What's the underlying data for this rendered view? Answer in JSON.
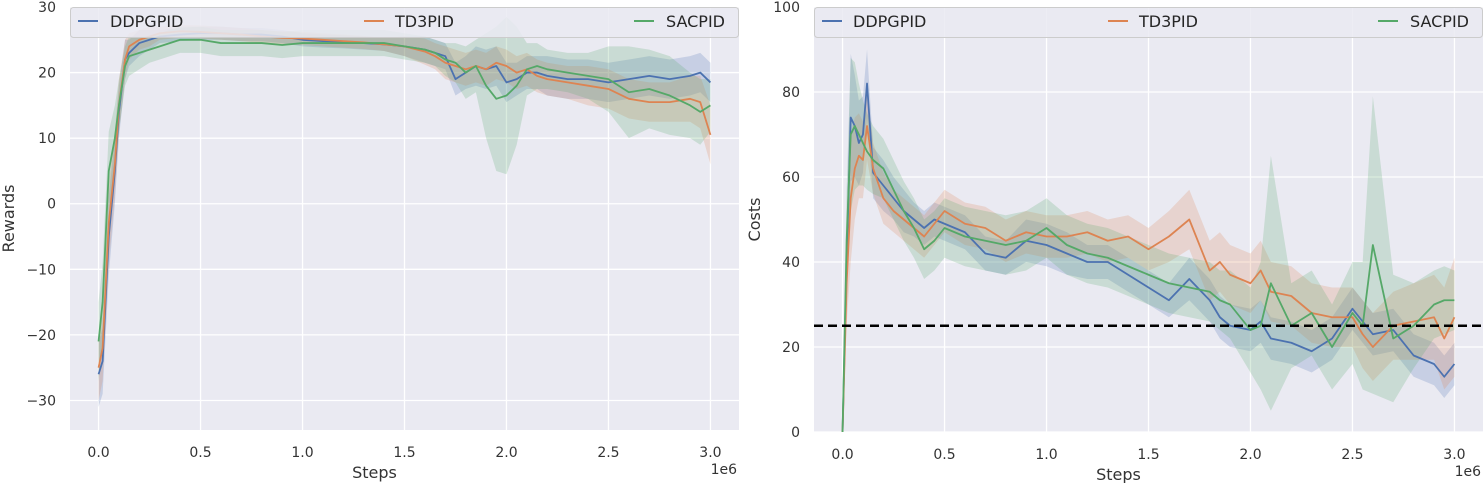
{
  "chart_data": [
    {
      "type": "line",
      "title": "",
      "xlabel": "Steps",
      "ylabel": "Rewards",
      "x_offset_label": "1e6",
      "xlim": [
        -0.14,
        3.14
      ],
      "ylim": [
        -34.5,
        30
      ],
      "xticks": [
        0.0,
        0.5,
        1.0,
        1.5,
        2.0,
        2.5,
        3.0
      ],
      "xtick_labels": [
        "0.0",
        "0.5",
        "1.0",
        "1.5",
        "2.0",
        "2.5",
        "3.0"
      ],
      "yticks": [
        -30,
        -20,
        -10,
        0,
        10,
        20,
        30
      ],
      "ytick_labels": [
        "−30",
        "−20",
        "−10",
        "0",
        "10",
        "20",
        "30"
      ],
      "grid": true,
      "legend": "top",
      "x": [
        0.0,
        0.02,
        0.05,
        0.08,
        0.1,
        0.13,
        0.15,
        0.2,
        0.25,
        0.3,
        0.4,
        0.5,
        0.6,
        0.7,
        0.8,
        0.9,
        1.0,
        1.1,
        1.2,
        1.3,
        1.4,
        1.5,
        1.6,
        1.65,
        1.7,
        1.75,
        1.8,
        1.85,
        1.9,
        1.95,
        2.0,
        2.05,
        2.1,
        2.15,
        2.2,
        2.3,
        2.4,
        2.5,
        2.6,
        2.7,
        2.8,
        2.9,
        2.95,
        3.0
      ],
      "series": [
        {
          "name": "DDPGPID",
          "color": "#4c72b0",
          "values": [
            -26,
            -24,
            -5,
            5,
            14,
            22,
            23,
            24.5,
            25,
            25.5,
            25.8,
            26,
            26,
            25.8,
            25.8,
            25.5,
            25,
            24.8,
            24.7,
            24.5,
            24.3,
            24,
            23.5,
            23,
            22.5,
            19,
            20,
            21,
            20.5,
            21,
            18.5,
            19,
            20,
            20,
            19.5,
            19,
            19,
            18.5,
            19,
            19.5,
            19,
            19.5,
            20,
            18.5
          ],
          "band": [
            5,
            5,
            6,
            5,
            4,
            3,
            2,
            2,
            1.5,
            1,
            1,
            1,
            1,
            1,
            1,
            1,
            1,
            1,
            1,
            1,
            1,
            1.5,
            2,
            2,
            2,
            2.5,
            2.5,
            3,
            3,
            3,
            3,
            2.5,
            2.5,
            2.5,
            3,
            3,
            3,
            3,
            3,
            3,
            3,
            3,
            3,
            3
          ]
        },
        {
          "name": "TD3PID",
          "color": "#dd8452",
          "values": [
            -25,
            -22,
            -3,
            6,
            15,
            22,
            24,
            25,
            25.5,
            26,
            26.3,
            26.2,
            26,
            25.8,
            25.5,
            25.3,
            25.2,
            25,
            24.8,
            24.6,
            24.3,
            24,
            23.2,
            22.5,
            21.5,
            21,
            20.5,
            21,
            20.5,
            21.5,
            21,
            20,
            20.5,
            19.5,
            19,
            18.5,
            18,
            17.5,
            16,
            15.5,
            15.5,
            16,
            15.5,
            10.5
          ],
          "band": [
            5,
            5,
            6,
            5,
            4,
            3,
            2,
            1.5,
            1.5,
            1,
            1,
            1,
            1,
            1,
            1,
            1,
            1,
            1,
            1,
            1,
            1,
            1.5,
            2,
            2,
            2.5,
            2.5,
            2.5,
            2.5,
            2.5,
            2.5,
            2.5,
            2.5,
            2.5,
            2.5,
            2.5,
            2.5,
            3,
            3,
            3,
            3,
            3,
            3.5,
            4,
            4.5
          ]
        },
        {
          "name": "SACPID",
          "color": "#55a868",
          "values": [
            -21,
            -15,
            5,
            10,
            15,
            21,
            22.5,
            23,
            23.5,
            24,
            25,
            25,
            24.5,
            24.5,
            24.5,
            24.2,
            24.5,
            24.5,
            24.5,
            24.5,
            24.5,
            24,
            23.5,
            23,
            22,
            21.5,
            20,
            21,
            18,
            16,
            16.5,
            18,
            20.5,
            21,
            20.5,
            20,
            19.5,
            19,
            17,
            17.5,
            16.5,
            15,
            14,
            15
          ],
          "band": [
            6,
            6,
            6,
            5,
            4,
            3,
            3,
            2.5,
            2,
            2,
            2,
            2,
            2,
            2,
            2,
            2,
            2,
            2,
            2,
            2,
            2,
            2,
            2,
            2,
            2.5,
            3,
            4,
            4,
            8,
            11,
            12,
            9,
            4,
            3.5,
            3,
            3,
            3.5,
            5,
            7,
            6,
            6,
            5,
            5,
            4
          ]
        }
      ]
    },
    {
      "type": "line",
      "title": "",
      "xlabel": "Steps",
      "ylabel": "Costs",
      "x_offset_label": "1e6",
      "xlim": [
        -0.14,
        3.14
      ],
      "ylim": [
        0,
        100
      ],
      "xticks": [
        0.0,
        0.5,
        1.0,
        1.5,
        2.0,
        2.5,
        3.0
      ],
      "xtick_labels": [
        "0.0",
        "0.5",
        "1.0",
        "1.5",
        "2.0",
        "2.5",
        "3.0"
      ],
      "yticks": [
        0,
        20,
        40,
        60,
        80,
        100
      ],
      "ytick_labels": [
        "0",
        "20",
        "40",
        "60",
        "80",
        "100"
      ],
      "grid": true,
      "legend": "top",
      "threshold": 25,
      "x": [
        0.0,
        0.02,
        0.04,
        0.06,
        0.08,
        0.1,
        0.12,
        0.15,
        0.2,
        0.25,
        0.3,
        0.35,
        0.4,
        0.45,
        0.5,
        0.6,
        0.7,
        0.8,
        0.9,
        1.0,
        1.1,
        1.2,
        1.3,
        1.4,
        1.5,
        1.6,
        1.7,
        1.8,
        1.85,
        1.9,
        2.0,
        2.05,
        2.1,
        2.2,
        2.3,
        2.4,
        2.5,
        2.55,
        2.6,
        2.7,
        2.8,
        2.9,
        2.95,
        3.0
      ],
      "series": [
        {
          "name": "DDPGPID",
          "color": "#4c72b0",
          "values": [
            0,
            40,
            74,
            72,
            68,
            70,
            82,
            61,
            58,
            55,
            52,
            50,
            48,
            50,
            49,
            47,
            42,
            41,
            45,
            44,
            42,
            40,
            40,
            37,
            34,
            31,
            36,
            31,
            27,
            25,
            24,
            26,
            22,
            21,
            19,
            22,
            29,
            26,
            23,
            24,
            18,
            16,
            13,
            16
          ],
          "band": [
            2,
            10,
            15,
            12,
            10,
            9,
            8,
            6,
            6,
            5,
            5,
            4,
            4,
            4,
            4,
            4,
            4,
            4,
            5,
            5,
            5,
            4,
            4,
            4,
            4,
            4,
            5,
            5,
            5,
            5,
            5,
            5,
            5,
            5,
            5,
            5,
            5,
            5,
            5,
            5,
            5,
            5,
            5,
            5
          ]
        },
        {
          "name": "TD3PID",
          "color": "#dd8452",
          "values": [
            0,
            35,
            55,
            62,
            65,
            64,
            72,
            62,
            55,
            52,
            50,
            48,
            46,
            49,
            52,
            49,
            48,
            45,
            47,
            46,
            46,
            47,
            45,
            46,
            43,
            46,
            50,
            38,
            40,
            37,
            35,
            38,
            33,
            32,
            28,
            27,
            27,
            23,
            20,
            25,
            26,
            27,
            22,
            27
          ],
          "band": [
            2,
            10,
            15,
            12,
            10,
            9,
            8,
            6,
            6,
            5,
            5,
            5,
            5,
            5,
            5,
            5,
            5,
            5,
            5,
            5,
            5,
            5,
            5,
            5,
            5,
            6,
            7,
            7,
            7,
            7,
            7,
            7,
            7,
            7,
            7,
            7,
            7,
            8,
            8,
            8,
            9,
            10,
            12,
            14
          ]
        },
        {
          "name": "SACPID",
          "color": "#55a868",
          "values": [
            0,
            45,
            70,
            72,
            70,
            68,
            66,
            64,
            62,
            57,
            52,
            48,
            43,
            45,
            48,
            46,
            45,
            44,
            45,
            48,
            44,
            42,
            41,
            39,
            37,
            35,
            34,
            33,
            31,
            30,
            24,
            25,
            35,
            25,
            28,
            20,
            28,
            25,
            44,
            22,
            25,
            30,
            31,
            31
          ],
          "band": [
            3,
            12,
            18,
            15,
            12,
            10,
            9,
            8,
            7,
            7,
            7,
            7,
            7,
            7,
            7,
            7,
            7,
            7,
            7,
            7,
            7,
            7,
            7,
            7,
            7,
            7,
            7,
            7,
            7,
            8,
            10,
            15,
            30,
            10,
            10,
            10,
            12,
            15,
            35,
            15,
            10,
            8,
            8,
            7
          ]
        }
      ]
    }
  ]
}
